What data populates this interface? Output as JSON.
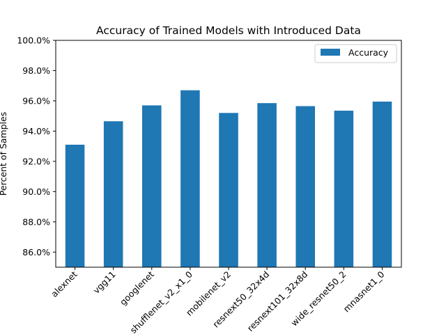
{
  "chart_data": {
    "type": "bar",
    "title": "Accuracy of Trained Models with Introduced Data",
    "xlabel": "",
    "ylabel": "Percent of Samples",
    "categories": [
      "alexnet",
      "vgg11",
      "googlenet",
      "shufflenet_v2_x1_0",
      "mobilenet_v2",
      "resnext50_32x4d",
      "resnext101_32x8d",
      "wide_resnet50_2",
      "mnasnet1_0"
    ],
    "series": [
      {
        "name": "Accuracy",
        "color": "#1f77b4",
        "values": [
          0.931,
          0.9465,
          0.957,
          0.967,
          0.952,
          0.9585,
          0.9565,
          0.9535,
          0.9595
        ]
      }
    ],
    "ylim": [
      0.85,
      1.0
    ],
    "yticks": [
      0.86,
      0.88,
      0.9,
      0.92,
      0.94,
      0.96,
      0.98,
      1.0
    ],
    "ytick_labels": [
      "86.0%",
      "88.0%",
      "90.0%",
      "92.0%",
      "94.0%",
      "96.0%",
      "98.0%",
      "100.0%"
    ],
    "legend_position": "top-right",
    "grid": false
  }
}
